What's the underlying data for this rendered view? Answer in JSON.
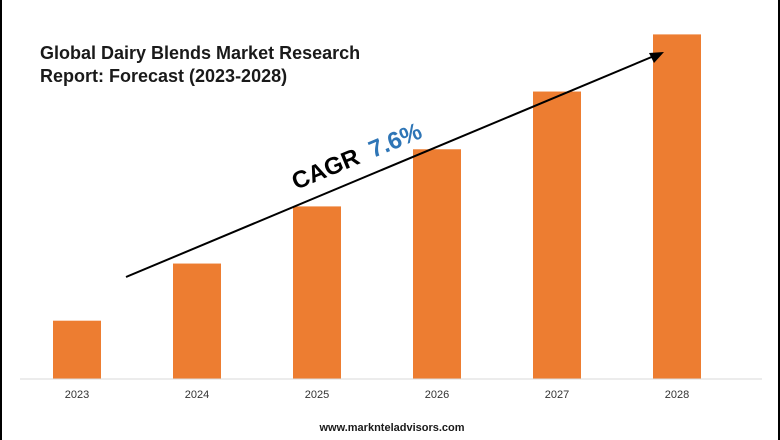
{
  "title_line1": "Global Dairy Blends Market Research",
  "title_line2": "Report: Forecast (2023-2028)",
  "cagr_label": "CAGR",
  "cagr_value": "7.6%",
  "source": "www.marknteladvisors.com",
  "colors": {
    "bar": "#ED7D31",
    "cagr_value": "#2E75B6",
    "text": "#1a1a1a",
    "axis": "#d9d9d9"
  },
  "chart_data": {
    "type": "bar",
    "categories": [
      "2023",
      "2024",
      "2025",
      "2026",
      "2027",
      "2028"
    ],
    "values": [
      1.0,
      1.98,
      2.96,
      3.94,
      4.93,
      5.91
    ],
    "title": "Global Dairy Blends Market Research Report: Forecast (2023-2028)",
    "xlabel": "",
    "ylabel": "",
    "ylim": [
      0,
      6.5
    ],
    "grid": false,
    "legend": "none",
    "annotations": [
      "CAGR 7.6%"
    ]
  }
}
